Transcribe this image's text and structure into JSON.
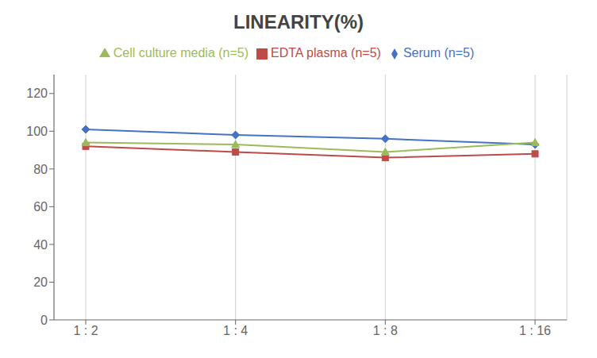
{
  "chart_data": {
    "type": "line",
    "title": "LINEARITY(%)",
    "categories": [
      "1 : 2",
      "1 : 4",
      "1 : 8",
      "1 : 16"
    ],
    "series": [
      {
        "name": "Serum (n=5)",
        "color": "#4472C4",
        "marker": "diamond",
        "values": [
          101,
          98,
          96,
          93
        ]
      },
      {
        "name": "EDTA plasma (n=5)",
        "color": "#BE4B48",
        "marker": "square",
        "values": [
          92,
          89,
          86,
          88
        ]
      },
      {
        "name": "Cell culture media (n=5)",
        "color": "#9BBB59",
        "marker": "triangle",
        "values": [
          94,
          93,
          89,
          94
        ]
      }
    ],
    "ylim": [
      0,
      130
    ],
    "yticks": [
      0,
      20,
      40,
      60,
      80,
      100,
      120
    ],
    "grid": true,
    "legend": "top"
  }
}
